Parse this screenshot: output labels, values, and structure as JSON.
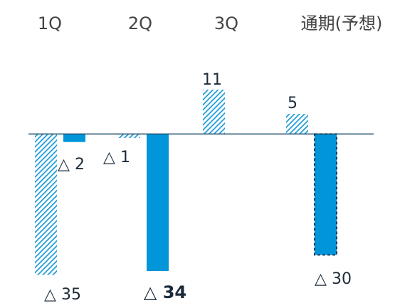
{
  "chart_data": {
    "type": "bar",
    "categories": [
      "1Q",
      "2Q",
      "3Q",
      "通期(予想)"
    ],
    "series": [
      {
        "color": "#1a9ad6",
        "values": [
          -35,
          -1,
          11,
          5
        ],
        "value_labels": [
          "△ 35",
          "△ 1",
          "11",
          "5"
        ]
      },
      {
        "color": "#0096d9",
        "values": [
          -2,
          -34,
          null,
          -30
        ],
        "value_labels": [
          "△ 2",
          "△ 34",
          null,
          "△ 30"
        ]
      }
    ],
    "ylim": [
      -40,
      20
    ]
  }
}
